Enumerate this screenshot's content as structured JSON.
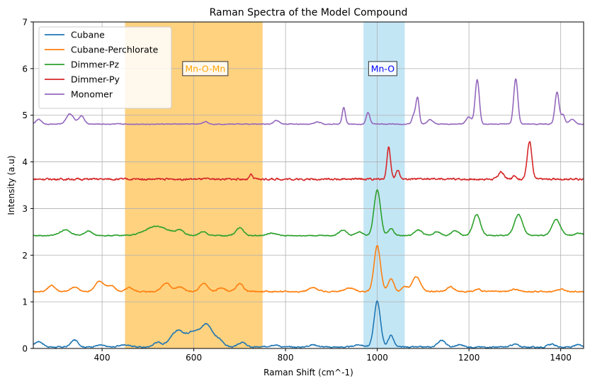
{
  "chart_data": {
    "type": "line",
    "title": "Raman Spectra of the Model Compound",
    "xlabel": "Raman Shift (cm^-1)",
    "ylabel": "Intensity (a.u)",
    "xlim": [
      250,
      1450
    ],
    "ylim": [
      0,
      7
    ],
    "xticks": [
      400,
      600,
      800,
      1000,
      1200,
      1400
    ],
    "yticks": [
      0,
      1,
      2,
      3,
      4,
      5,
      6,
      7
    ],
    "grid": true,
    "legend_position": "top-left",
    "shaded_regions": [
      {
        "label": "Mn-O-Mn",
        "x_range": [
          450,
          750
        ],
        "color": "#ffa500",
        "label_color": "#ffa500",
        "label_x": 625,
        "label_y": 6.0
      },
      {
        "label": "Mn-O",
        "x_range": [
          970,
          1060
        ],
        "color": "#87ceeb",
        "label_color": "#0000ff",
        "label_x": 1012,
        "label_y": 6.0
      }
    ],
    "series": [
      {
        "name": "Cubane",
        "color": "#1f77b4",
        "baseline": 0.03,
        "noise": 0.01,
        "peaks": [
          [
            262,
            0.12,
            9
          ],
          [
            340,
            0.15,
            8
          ],
          [
            395,
            0.04,
            10
          ],
          [
            450,
            0.05,
            12
          ],
          [
            520,
            0.1,
            8
          ],
          [
            565,
            0.35,
            16
          ],
          [
            600,
            0.3,
            12
          ],
          [
            628,
            0.48,
            12
          ],
          [
            655,
            0.15,
            10
          ],
          [
            705,
            0.1,
            8
          ],
          [
            775,
            0.05,
            10
          ],
          [
            860,
            0.05,
            10
          ],
          [
            960,
            0.05,
            10
          ],
          [
            1000,
            0.98,
            7
          ],
          [
            1030,
            0.25,
            6
          ],
          [
            1140,
            0.15,
            8
          ],
          [
            1180,
            0.05,
            8
          ],
          [
            1300,
            0.06,
            8
          ],
          [
            1380,
            0.06,
            8
          ],
          [
            1440,
            0.05,
            8
          ]
        ]
      },
      {
        "name": "Cubane-Perchlorate",
        "color": "#ff7f0e",
        "baseline": 1.22,
        "noise": 0.01,
        "peaks": [
          [
            290,
            0.13,
            8
          ],
          [
            340,
            0.1,
            8
          ],
          [
            395,
            0.22,
            10
          ],
          [
            420,
            0.12,
            8
          ],
          [
            460,
            0.08,
            8
          ],
          [
            540,
            0.18,
            10
          ],
          [
            570,
            0.1,
            8
          ],
          [
            622,
            0.18,
            8
          ],
          [
            660,
            0.08,
            8
          ],
          [
            700,
            0.16,
            8
          ],
          [
            860,
            0.08,
            10
          ],
          [
            940,
            0.08,
            10
          ],
          [
            1000,
            0.98,
            7
          ],
          [
            1030,
            0.28,
            6
          ],
          [
            1060,
            0.1,
            6
          ],
          [
            1085,
            0.32,
            9
          ],
          [
            1160,
            0.1,
            8
          ],
          [
            1220,
            0.05,
            6
          ],
          [
            1300,
            0.05,
            8
          ],
          [
            1400,
            0.05,
            8
          ]
        ]
      },
      {
        "name": "Dimmer-Pz",
        "color": "#2ca02c",
        "baseline": 2.42,
        "noise": 0.008,
        "peaks": [
          [
            320,
            0.12,
            12
          ],
          [
            370,
            0.1,
            8
          ],
          [
            520,
            0.2,
            25
          ],
          [
            570,
            0.1,
            8
          ],
          [
            620,
            0.08,
            8
          ],
          [
            700,
            0.17,
            8
          ],
          [
            770,
            0.05,
            10
          ],
          [
            925,
            0.12,
            8
          ],
          [
            960,
            0.08,
            8
          ],
          [
            1000,
            0.98,
            7
          ],
          [
            1030,
            0.15,
            6
          ],
          [
            1090,
            0.12,
            8
          ],
          [
            1130,
            0.08,
            8
          ],
          [
            1170,
            0.1,
            8
          ],
          [
            1217,
            0.45,
            8
          ],
          [
            1308,
            0.45,
            9
          ],
          [
            1390,
            0.35,
            9
          ],
          [
            1440,
            0.05,
            8
          ]
        ]
      },
      {
        "name": "Dimmer-Py",
        "color": "#d62728",
        "baseline": 3.63,
        "noise": 0.015,
        "peaks": [
          [
            725,
            0.1,
            3
          ],
          [
            1025,
            0.68,
            4
          ],
          [
            1045,
            0.2,
            4
          ],
          [
            1270,
            0.15,
            6
          ],
          [
            1300,
            0.08,
            4
          ],
          [
            1332,
            0.82,
            5
          ]
        ]
      },
      {
        "name": "Monomer",
        "color": "#9467bd",
        "baseline": 4.81,
        "noise": 0.006,
        "peaks": [
          [
            262,
            0.1,
            6
          ],
          [
            330,
            0.22,
            8
          ],
          [
            355,
            0.18,
            6
          ],
          [
            625,
            0.05,
            6
          ],
          [
            780,
            0.08,
            6
          ],
          [
            870,
            0.05,
            6
          ],
          [
            927,
            0.35,
            3.5
          ],
          [
            980,
            0.25,
            4
          ],
          [
            1080,
            0.2,
            4
          ],
          [
            1088,
            0.55,
            3.5
          ],
          [
            1115,
            0.1,
            6
          ],
          [
            1200,
            0.15,
            6
          ],
          [
            1218,
            0.95,
            4.5
          ],
          [
            1302,
            0.97,
            4.5
          ],
          [
            1392,
            0.68,
            4.5
          ],
          [
            1405,
            0.2,
            4
          ],
          [
            1425,
            0.1,
            6
          ]
        ]
      }
    ]
  }
}
